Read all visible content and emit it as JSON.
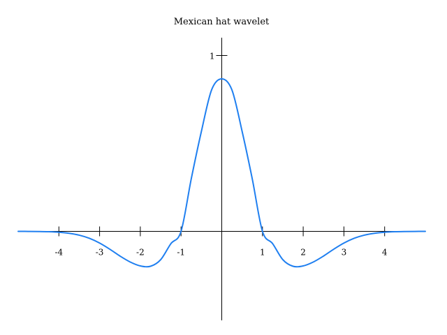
{
  "chart_data": {
    "type": "line",
    "title": "Mexican hat wavelet",
    "xlabel": "",
    "ylabel": "",
    "xlim": [
      -5,
      5
    ],
    "ylim": [
      -0.55,
      1.1
    ],
    "grid": false,
    "x_ticks": [
      -4,
      -3,
      -2,
      -1,
      1,
      2,
      3,
      4
    ],
    "x_tick_labels": [
      "-4",
      "-3",
      "-2",
      "-1",
      "1",
      "2",
      "3",
      "4"
    ],
    "y_ticks": [
      1
    ],
    "y_tick_labels": [
      "1"
    ],
    "series": [
      {
        "color": "#1f7ff0",
        "x": [
          -5.0,
          -4.75,
          -4.5,
          -4.25,
          -4.0,
          -3.75,
          -3.5,
          -3.25,
          -3.0,
          -2.75,
          -2.5,
          -2.25,
          -2.0,
          -1.75,
          -1.5,
          -1.25,
          -1.0,
          -0.75,
          -0.5,
          -0.25,
          0.0,
          0.25,
          0.5,
          0.75,
          1.0,
          1.25,
          1.5,
          1.75,
          2.0,
          2.25,
          2.5,
          2.75,
          3.0,
          3.25,
          3.5,
          3.75,
          4.0,
          4.25,
          4.5,
          4.75,
          5.0
        ],
        "y": [
          -0.0001,
          -0.0003,
          -0.0008,
          -0.0021,
          -0.005,
          -0.0108,
          -0.0216,
          -0.0396,
          -0.0665,
          -0.1014,
          -0.1403,
          -0.174,
          -0.1964,
          -0.1984,
          -0.161,
          -0.0702,
          0.0,
          0.2975,
          0.5685,
          0.8041,
          0.8673,
          0.8041,
          0.5685,
          0.2975,
          0.0,
          -0.0702,
          -0.161,
          -0.1984,
          -0.1964,
          -0.174,
          -0.1403,
          -0.1014,
          -0.0665,
          -0.0396,
          -0.0216,
          -0.0108,
          -0.005,
          -0.0021,
          -0.0008,
          -0.0003,
          -0.0001
        ]
      }
    ]
  }
}
